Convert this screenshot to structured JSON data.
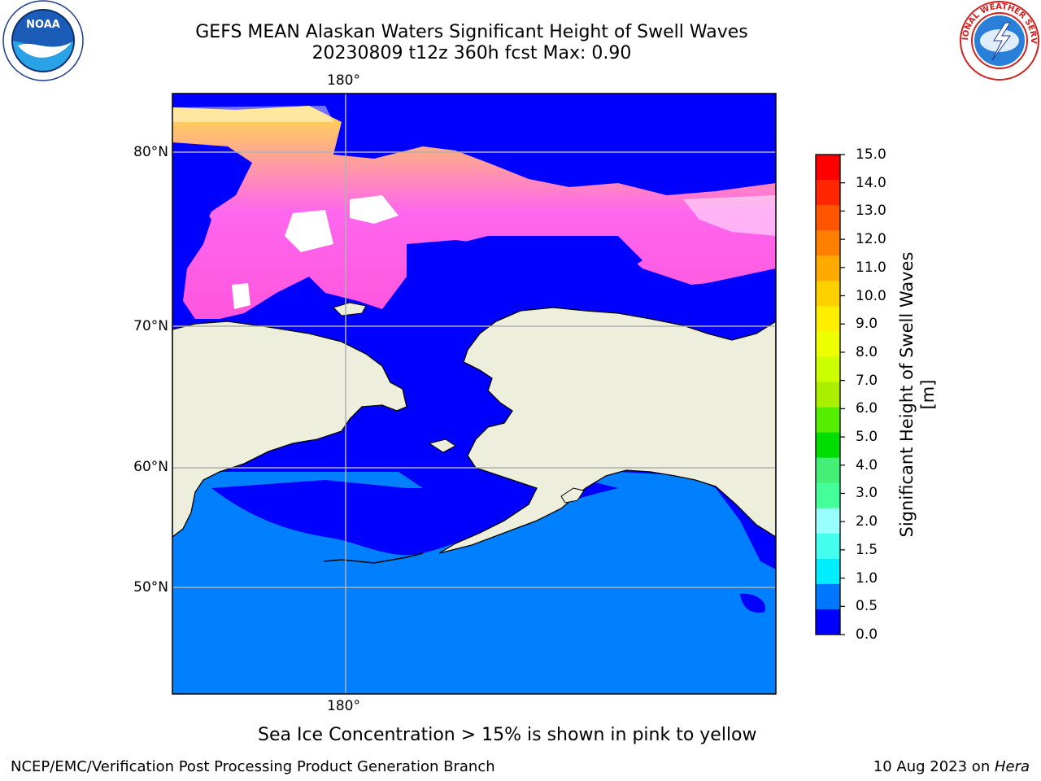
{
  "title": {
    "line1": "GEFS MEAN Alaskan Waters Significant Height of Swell Waves",
    "line2": "20230809 t12z 360h fcst   Max: 0.90"
  },
  "map": {
    "lon_labels": {
      "top": "180°",
      "bottom": "180°"
    },
    "lat_labels": [
      "80°N",
      "70°N",
      "60°N",
      "50°N"
    ],
    "note": "Sea Ice Concentration > 15% is shown in pink to yellow"
  },
  "colorbar": {
    "label": "Significant Height of Swell Waves [m]",
    "ticks": [
      "15.0",
      "14.0",
      "13.0",
      "12.0",
      "11.0",
      "10.0",
      "9.0",
      "8.0",
      "7.0",
      "6.0",
      "5.0",
      "4.0",
      "3.0",
      "2.0",
      "1.5",
      "1.0",
      "0.5",
      "0.0"
    ],
    "bands_top_to_bottom": [
      "#ff0000",
      "#ff2600",
      "#ff5500",
      "#ff8000",
      "#ffaa00",
      "#ffd000",
      "#ffee00",
      "#eeff00",
      "#ccff00",
      "#aaee00",
      "#55ee00",
      "#00dd00",
      "#44ee77",
      "#44ff99",
      "#99ffff",
      "#44ffee",
      "#00eeff",
      "#0077ff",
      "#0000ff"
    ]
  },
  "colors": {
    "land": "#eeeedd",
    "water_low": "#0000ff",
    "water_mid": "#0080ff",
    "ice_pink": "#ff66ee",
    "ice_yellow": "#ffdd44"
  },
  "logos": {
    "noaa": "NOAA",
    "nws": "NATIONAL WEATHER SERVICE"
  },
  "footer": {
    "left": "NCEP/EMC/Verification Post Processing Product Generation Branch",
    "right_date": "10 Aug 2023 on ",
    "right_host": "Hera"
  }
}
